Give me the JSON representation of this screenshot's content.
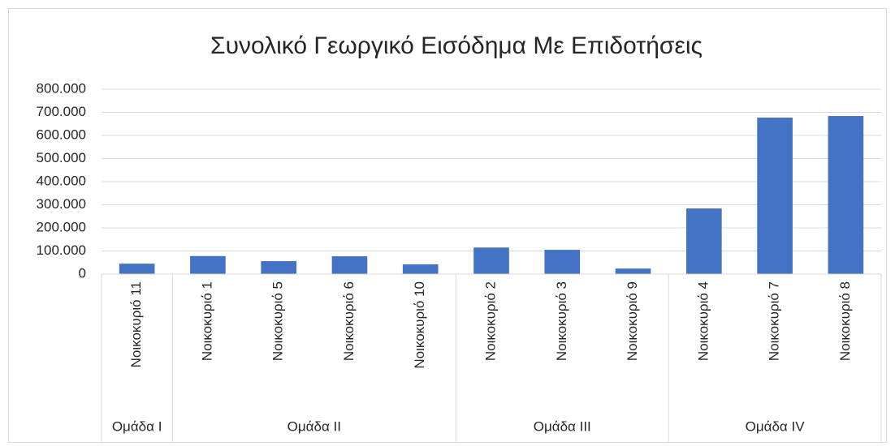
{
  "chart_data": {
    "type": "bar",
    "title": "Συνολικό Γεωργικό Εισόδημα Με Επιδοτήσεις",
    "groups": [
      {
        "label": "Ομάδα I",
        "categories": [
          "Νοικοκυριό 11"
        ]
      },
      {
        "label": "Ομάδα II",
        "categories": [
          "Νοικοκυριό 1",
          "Νοικοκυριό 5",
          "Νοικοκυριό 6",
          "Νοικοκυριό 10"
        ]
      },
      {
        "label": "Ομάδα III",
        "categories": [
          "Νοικοκυριό 2",
          "Νοικοκυριό 3",
          "Νοικοκυριό 9"
        ]
      },
      {
        "label": "Ομάδα IV",
        "categories": [
          "Νοικοκυριό 4",
          "Νοικοκυριό 7",
          "Νοικοκυριό 8"
        ]
      }
    ],
    "values": [
      45000,
      78000,
      56000,
      77000,
      42000,
      115000,
      105000,
      24000,
      284000,
      677000,
      684000
    ],
    "color": "#4472c4",
    "ylim": [
      0,
      800000
    ],
    "yticks": [
      0,
      {
        "value": 100000,
        "label": "100.000"
      },
      {
        "value": 200000,
        "label": "200.000"
      },
      {
        "value": 300000,
        "label": "300.000"
      },
      {
        "value": 400000,
        "label": "400.000"
      },
      {
        "value": 500000,
        "label": "500.000"
      },
      {
        "value": 600000,
        "label": "600.000"
      },
      {
        "value": 700000,
        "label": "700.000"
      },
      {
        "value": 800000,
        "label": "800.000"
      }
    ],
    "grid": true
  }
}
